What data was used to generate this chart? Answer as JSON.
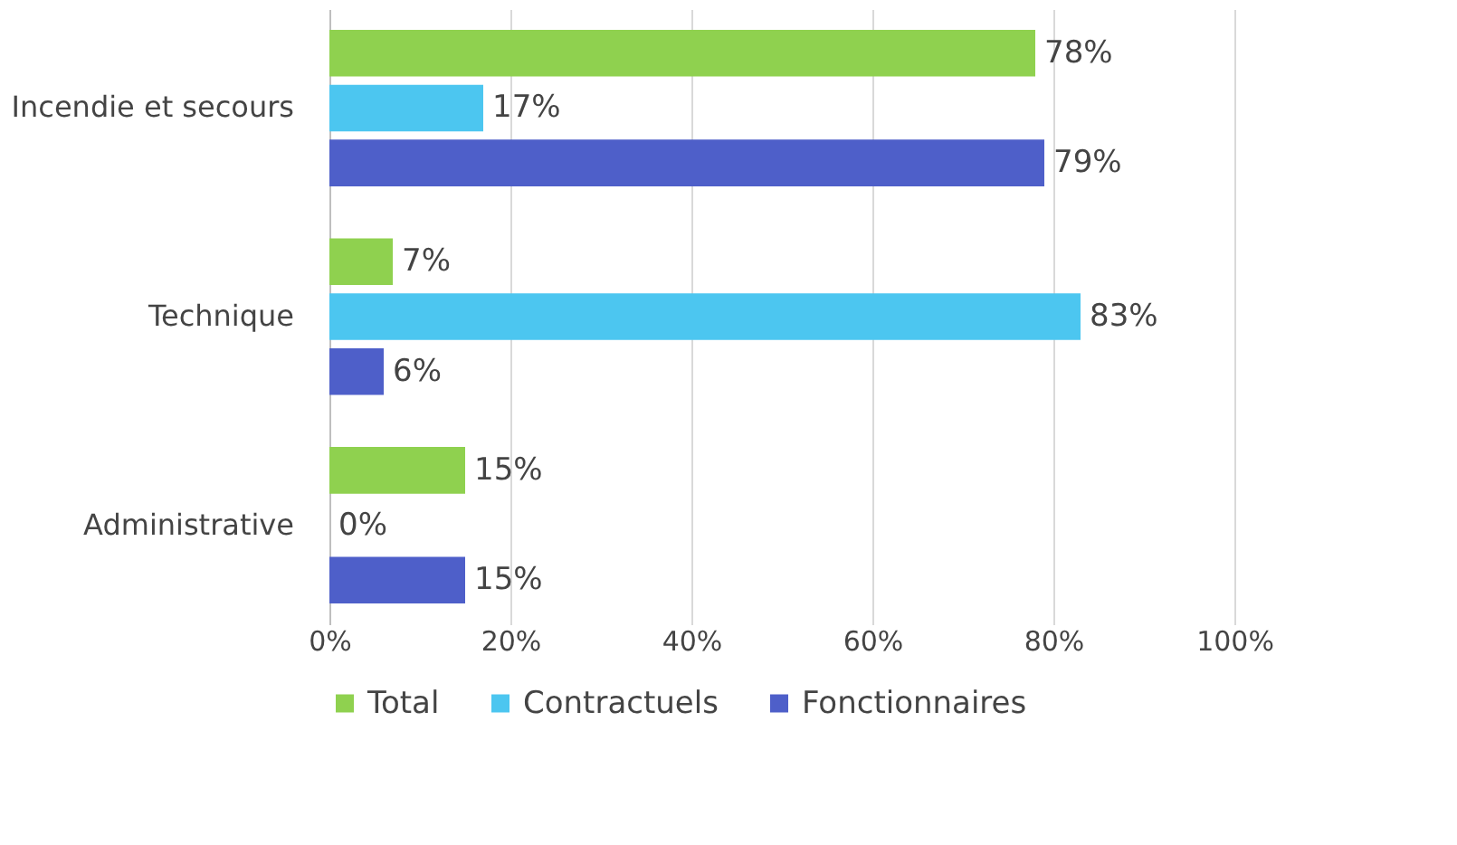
{
  "chart_data": {
    "type": "bar",
    "orientation": "horizontal",
    "categories": [
      "Incendie et secours",
      "Technique",
      "Administrative"
    ],
    "series": [
      {
        "name": "Total",
        "color": "#8fd14f",
        "values": [
          78,
          7,
          15
        ],
        "value_labels": [
          "78%",
          "7%",
          "15%"
        ]
      },
      {
        "name": "Contractuels",
        "color": "#4cc6f0",
        "values": [
          17,
          83,
          0
        ],
        "value_labels": [
          "17%",
          "83%",
          "0%"
        ]
      },
      {
        "name": "Fonctionnaires",
        "color": "#4e5fc9",
        "values": [
          79,
          6,
          15
        ],
        "value_labels": [
          "79%",
          "6%",
          "15%"
        ]
      }
    ],
    "xlim": [
      0,
      100
    ],
    "xticks": [
      {
        "value": 0,
        "label": "0%"
      },
      {
        "value": 20,
        "label": "20%"
      },
      {
        "value": 40,
        "label": "40%"
      },
      {
        "value": 60,
        "label": "60%"
      },
      {
        "value": 80,
        "label": "80%"
      },
      {
        "value": 100,
        "label": "100%"
      }
    ],
    "grid": "x",
    "legend": "bottom"
  }
}
